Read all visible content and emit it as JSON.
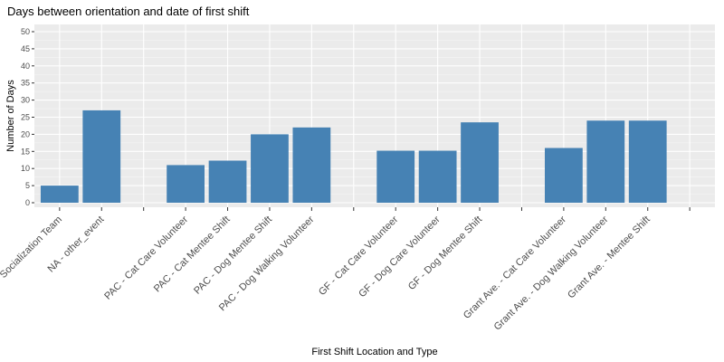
{
  "chart_data": {
    "type": "bar",
    "title": "Days between orientation and date of first shift",
    "xlabel": "First Shift Location and Type",
    "ylabel": "Number of Days",
    "ylim": [
      0,
      50
    ],
    "yticks": [
      0,
      5,
      10,
      15,
      20,
      25,
      30,
      35,
      40,
      45,
      50
    ],
    "grid": true,
    "bar_color": "#4682B4",
    "panel_color": "#EBEBEB",
    "categories": [
      "Socialization Team",
      "NA - other_event",
      "",
      "PAC - Cat Care Volunteer",
      "PAC - Cat Mentee Shift",
      "PAC - Dog Mentee Shift",
      "PAC - Dog Walking Volunteer",
      "",
      "GF - Cat Care Volunteer",
      "GF - Dog Care Volunteer",
      "GF - Dog Mentee Shift",
      "",
      "Grant Ave. - Cat Care Volunteer",
      "Grant Ave. - Dog Walking Volunteer",
      "Grant Ave. - Mentee Shift",
      ""
    ],
    "values": [
      5,
      27,
      null,
      11,
      12.3,
      20,
      22,
      null,
      15.2,
      15.2,
      23.5,
      null,
      16,
      24,
      24,
      null
    ]
  }
}
